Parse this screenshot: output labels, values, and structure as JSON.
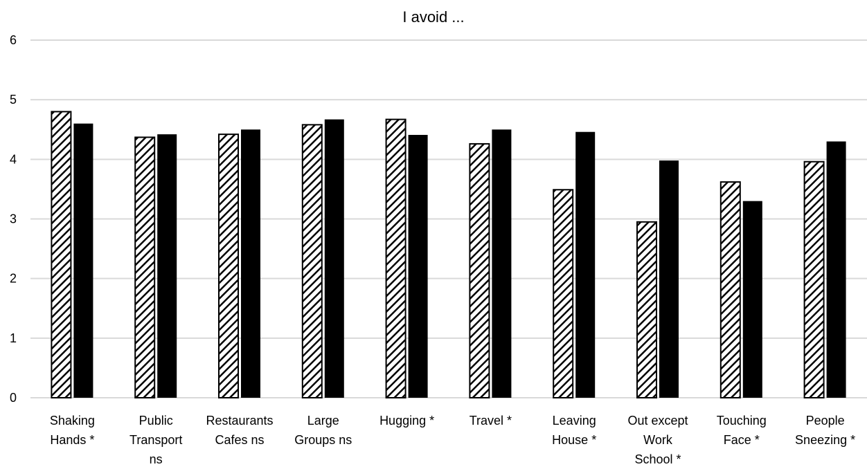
{
  "chart_data": {
    "type": "bar",
    "title": "I avoid ...",
    "xlabel": "",
    "ylabel": "",
    "ylim": [
      0,
      6
    ],
    "yticks": [
      "0",
      "1",
      "2",
      "3",
      "4",
      "5",
      "6"
    ],
    "grid": true,
    "categories": [
      "Shaking\nHands  *",
      "Public\nTransport\nns",
      "Restaurants\nCafes   ns",
      "Large\nGroups  ns",
      "Hugging *",
      "Travel  *",
      "Leaving\nHouse  *",
      "Out except\nWork\nSchool  *",
      "Touching\nFace  *",
      "People\nSneezing  *"
    ],
    "series": [
      {
        "pattern": "hatched",
        "values": [
          4.8,
          4.37,
          4.42,
          4.58,
          4.67,
          4.26,
          3.49,
          2.95,
          3.62,
          3.96
        ]
      },
      {
        "pattern": "solid",
        "values": [
          4.6,
          4.42,
          4.5,
          4.67,
          4.41,
          4.5,
          4.46,
          3.98,
          3.3,
          4.3
        ]
      }
    ],
    "colors": {
      "grid": "#d9d9d9",
      "bar": "#000000",
      "hatch_bg": "#ffffff"
    }
  }
}
